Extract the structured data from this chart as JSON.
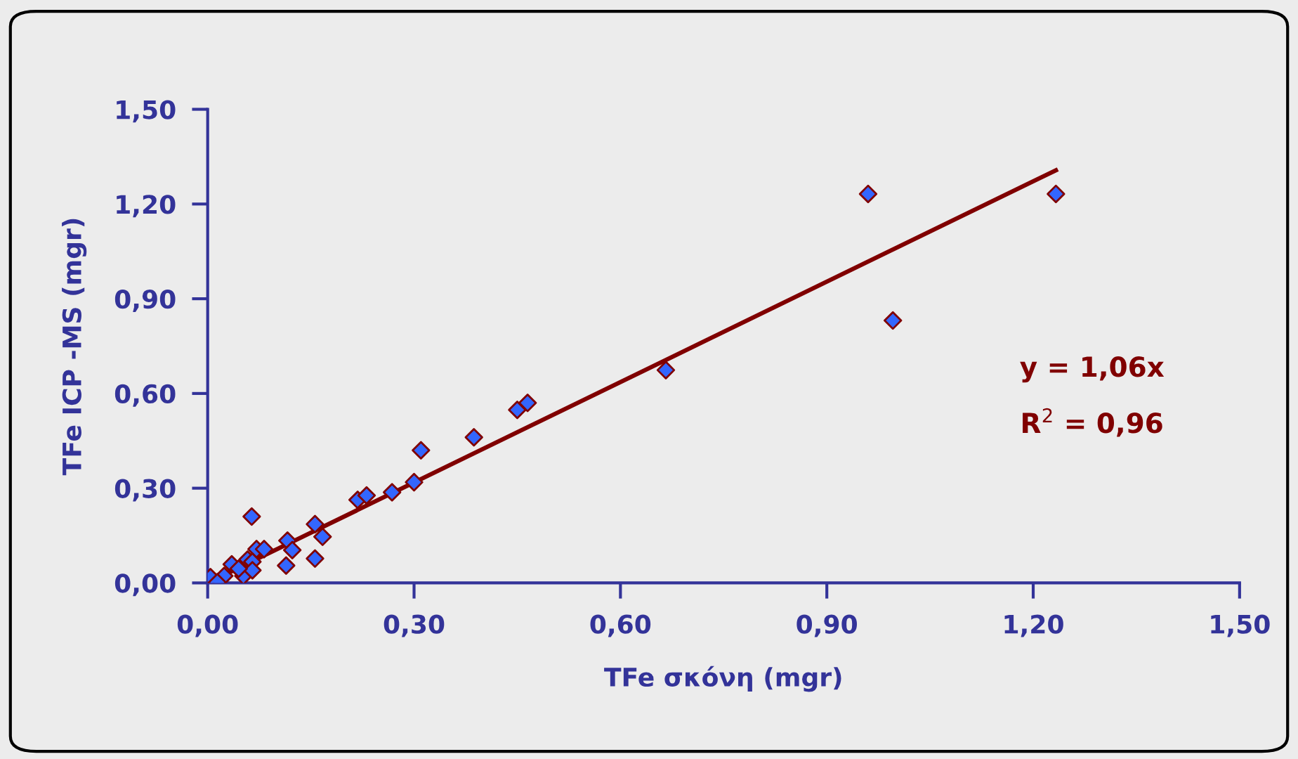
{
  "chart_data": {
    "type": "scatter",
    "xlabel": "TFe σκόνη (mgr)",
    "ylabel": "TFe ICP -MS (mgr)",
    "xlim": [
      0,
      1.5
    ],
    "ylim": [
      0,
      1.5
    ],
    "xticks": [
      {
        "value": 0,
        "label": "0,00"
      },
      {
        "value": 0.3,
        "label": "0,30"
      },
      {
        "value": 0.6,
        "label": "0,60"
      },
      {
        "value": 0.9,
        "label": "0,90"
      },
      {
        "value": 1.2,
        "label": "1,20"
      },
      {
        "value": 1.5,
        "label": "1,50"
      }
    ],
    "yticks": [
      {
        "value": 0,
        "label": "0,00"
      },
      {
        "value": 0.3,
        "label": "0,30"
      },
      {
        "value": 0.6,
        "label": "0,60"
      },
      {
        "value": 0.9,
        "label": "0,90"
      },
      {
        "value": 1.2,
        "label": "1,20"
      },
      {
        "value": 1.5,
        "label": "1,50"
      }
    ],
    "grid": false,
    "legend": false,
    "series": [
      {
        "marker": "diamond",
        "color": "#3366ff",
        "x": [
          0.064,
          0.218,
          0.231,
          0.268,
          0.3,
          0.156,
          0.167,
          0.116,
          0.123,
          0.114,
          0.156,
          0.071,
          0.082,
          0.058,
          0.065,
          0.035,
          0.052,
          0.024,
          0.004,
          0.014,
          0.065,
          0.045,
          0.31,
          0.387,
          0.45,
          0.465,
          0.666,
          0.96,
          1.233,
          0.996
        ],
        "values": [
          0.21,
          0.263,
          0.277,
          0.287,
          0.319,
          0.186,
          0.146,
          0.134,
          0.104,
          0.055,
          0.077,
          0.107,
          0.107,
          0.074,
          0.067,
          0.059,
          0.022,
          0.022,
          0.018,
          0.002,
          0.04,
          0.045,
          0.42,
          0.461,
          0.548,
          0.57,
          0.674,
          1.232,
          1.232,
          0.831
        ]
      },
      {
        "type": "line",
        "marker": "none",
        "color": "#800000",
        "x": [
          0,
          1.233
        ],
        "values": [
          0,
          1.307
        ]
      }
    ],
    "annotations": [
      "y = 1,06x",
      "R$^{2}$ = 0,96"
    ]
  }
}
